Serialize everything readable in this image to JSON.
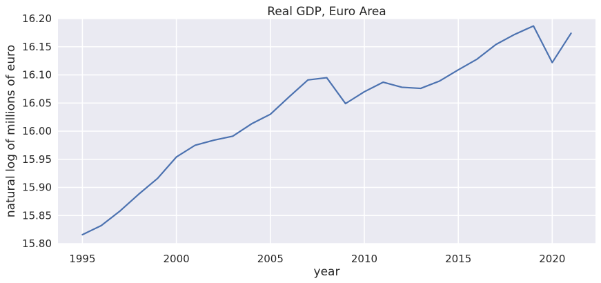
{
  "chart_data": {
    "type": "line",
    "title": "Real GDP, Euro Area",
    "xlabel": "year",
    "ylabel": "natural log of millions of euro",
    "xlim": [
      1993.7,
      2022.3
    ],
    "ylim": [
      15.8,
      16.2
    ],
    "xticks": [
      1995,
      2000,
      2005,
      2010,
      2015,
      2020
    ],
    "xtick_labels": [
      "1995",
      "2000",
      "2005",
      "2010",
      "2015",
      "2020"
    ],
    "yticks": [
      15.8,
      15.85,
      15.9,
      15.95,
      16.0,
      16.05,
      16.1,
      16.15,
      16.2
    ],
    "ytick_labels": [
      "15.80",
      "15.85",
      "15.90",
      "15.95",
      "16.00",
      "16.05",
      "16.10",
      "16.15",
      "16.20"
    ],
    "grid": true,
    "background": "#eaeaf2",
    "gridColor": "#ffffff",
    "x": [
      1995,
      1996,
      1997,
      1998,
      1999,
      2000,
      2001,
      2002,
      2003,
      2004,
      2005,
      2006,
      2007,
      2008,
      2009,
      2010,
      2011,
      2012,
      2013,
      2014,
      2015,
      2016,
      2017,
      2018,
      2019,
      2020,
      2021
    ],
    "series": [
      {
        "color": "#4c72b0",
        "values": [
          15.816,
          15.832,
          15.858,
          15.888,
          15.916,
          15.954,
          15.975,
          15.984,
          15.991,
          16.013,
          16.03,
          16.061,
          16.091,
          16.095,
          16.049,
          16.07,
          16.087,
          16.078,
          16.076,
          16.089,
          16.109,
          16.128,
          16.154,
          16.172,
          16.187,
          16.122,
          16.174
        ]
      }
    ]
  }
}
